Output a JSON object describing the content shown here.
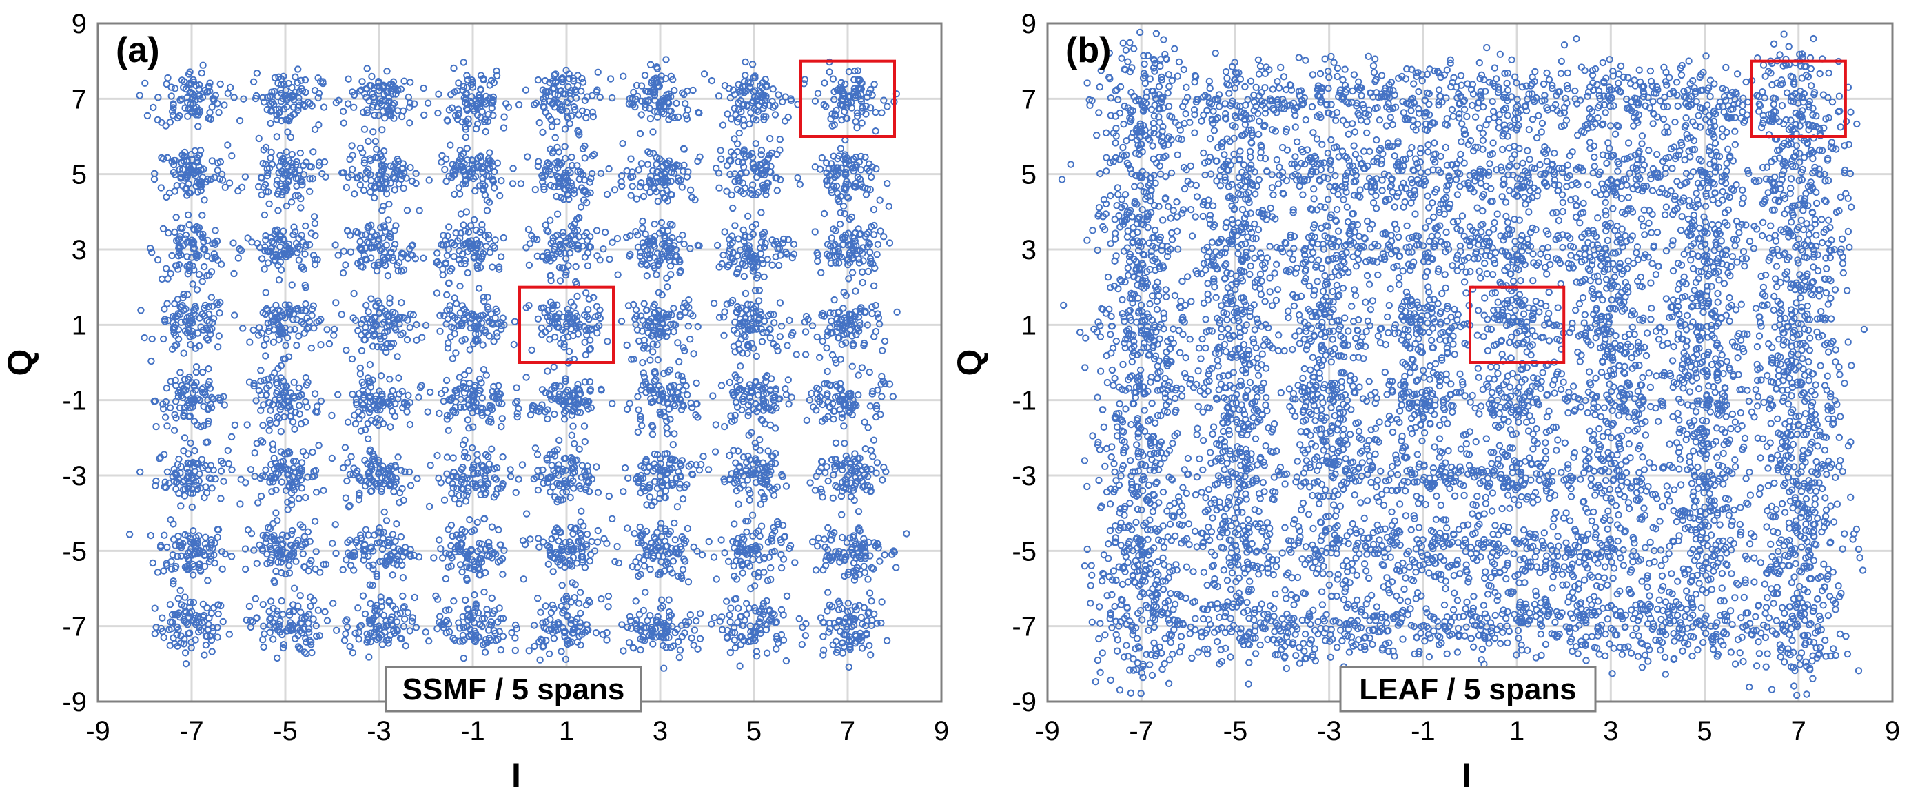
{
  "figure": {
    "marker_color": "#4472C4",
    "highlight_color": "#E3141B",
    "grid_color": "#D9D9D9",
    "frame_color": "#808080"
  },
  "chart_data": [
    {
      "type": "scatter",
      "panel_label": "(a)",
      "badge": "SSMF / 5 spans",
      "xlabel": "I",
      "ylabel": "Q",
      "xlim": [
        -9,
        9
      ],
      "ylim": [
        -9,
        9
      ],
      "xticks": [
        "-9",
        "-7",
        "-5",
        "-3",
        "-1",
        "1",
        "3",
        "5",
        "7",
        "9"
      ],
      "yticks": [
        "9",
        "7",
        "5",
        "3",
        "1",
        "-1",
        "-3",
        "-5",
        "-7",
        "-9"
      ],
      "constellation": "64-QAM",
      "cluster_centers_I": [
        -7,
        -5,
        -3,
        -1,
        1,
        3,
        5,
        7
      ],
      "cluster_centers_Q": [
        -7,
        -5,
        -3,
        -1,
        1,
        3,
        5,
        7
      ],
      "cluster_spread": 0.38,
      "ring_spread": 0.0,
      "highlight_boxes": [
        {
          "x_range": [
            6,
            8
          ],
          "y_range": [
            6,
            8
          ]
        },
        {
          "x_range": [
            0,
            2
          ],
          "y_range": [
            0,
            2
          ]
        }
      ]
    },
    {
      "type": "scatter",
      "panel_label": "(b)",
      "badge": "LEAF / 5 spans",
      "xlabel": "I",
      "ylabel": "Q",
      "xlim": [
        -9,
        9
      ],
      "ylim": [
        -9,
        9
      ],
      "xticks": [
        "-9",
        "-7",
        "-5",
        "-3",
        "-1",
        "1",
        "3",
        "5",
        "7",
        "9"
      ],
      "yticks": [
        "9",
        "7",
        "5",
        "3",
        "1",
        "-1",
        "-3",
        "-5",
        "-7",
        "-9"
      ],
      "constellation": "64-QAM",
      "cluster_centers_I": [
        -7,
        -5,
        -3,
        -1,
        1,
        3,
        5,
        7
      ],
      "cluster_centers_Q": [
        -7,
        -5,
        -3,
        -1,
        1,
        3,
        5,
        7
      ],
      "cluster_spread": 0.5,
      "ring_spread": 0.9,
      "highlight_boxes": [
        {
          "x_range": [
            6,
            8
          ],
          "y_range": [
            6,
            8
          ]
        },
        {
          "x_range": [
            0,
            2
          ],
          "y_range": [
            0,
            2
          ]
        }
      ]
    }
  ]
}
